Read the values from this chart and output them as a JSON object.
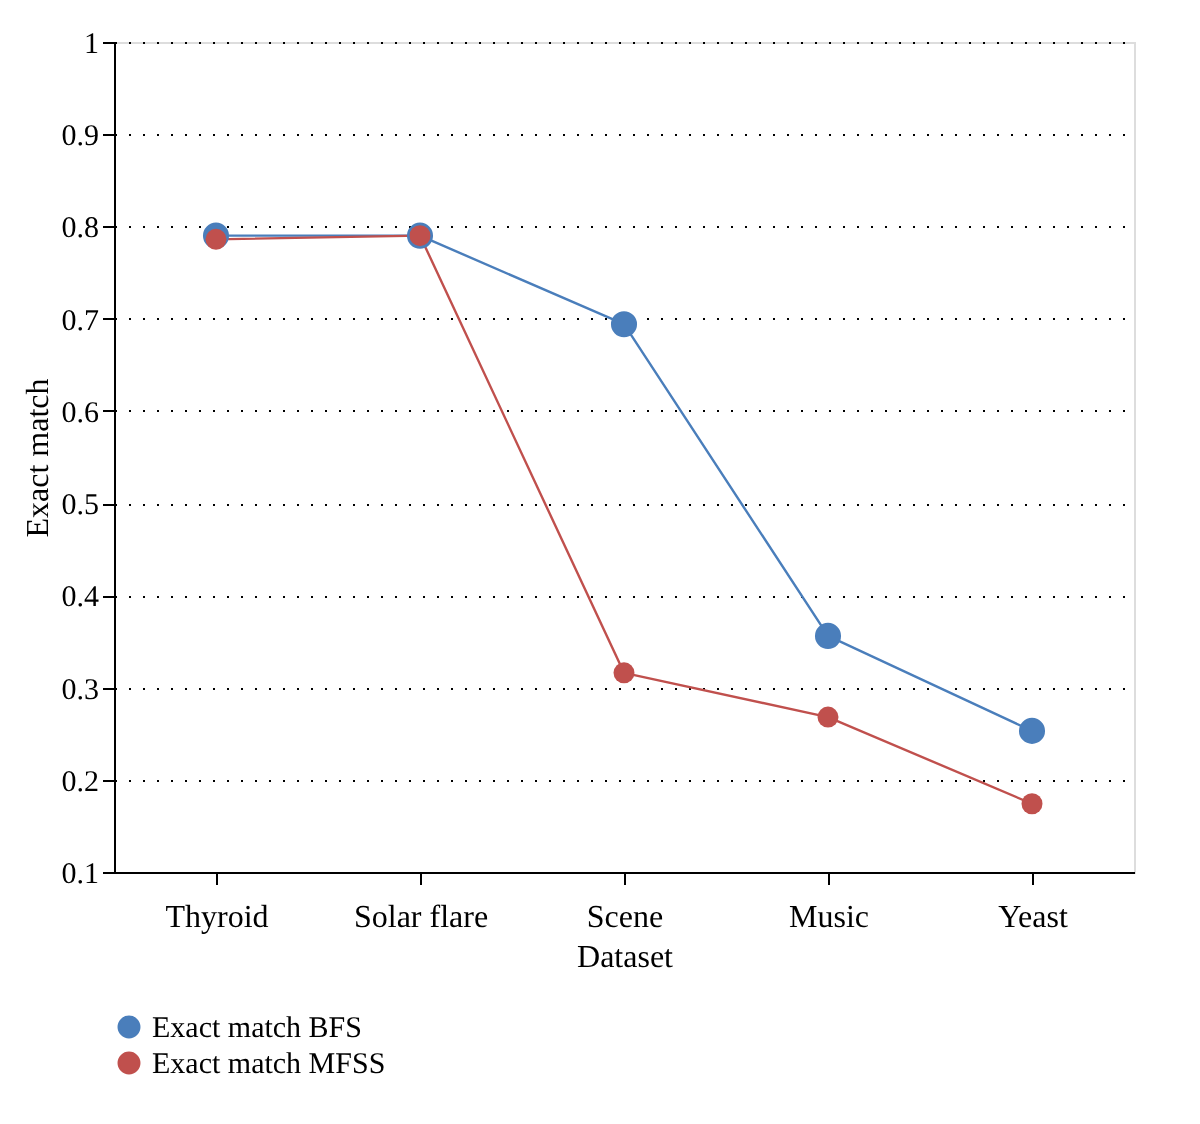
{
  "chart_data": {
    "type": "line",
    "xlabel": "Dataset",
    "ylabel": "Exact match",
    "categories": [
      "Thyroid",
      "Solar flare",
      "Scene",
      "Music",
      "Yeast"
    ],
    "series": [
      {
        "name": "Exact match BFS",
        "color": "#4a7ebb",
        "values": [
          0.79,
          0.79,
          0.694,
          0.356,
          0.253
        ]
      },
      {
        "name": "Exact match MFSS",
        "color": "#c0504d",
        "values": [
          0.786,
          0.79,
          0.316,
          0.268,
          0.174
        ]
      }
    ],
    "ylim": [
      0.1,
      1
    ],
    "yticks": [
      0.1,
      0.2,
      0.3,
      0.4,
      0.5,
      0.6,
      0.7,
      0.8,
      0.9,
      1
    ],
    "grid": "y",
    "legend": "bottom left",
    "marker": "circle",
    "line_style": "solid"
  }
}
